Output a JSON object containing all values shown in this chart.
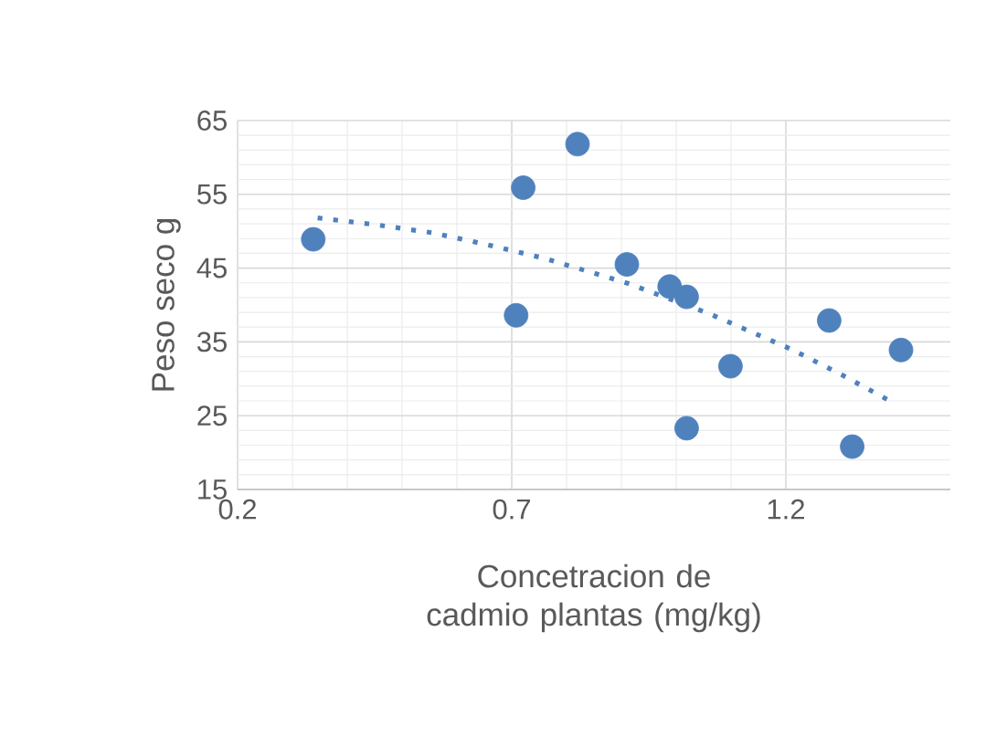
{
  "chart_data": {
    "type": "scatter",
    "xlabel": "Concetracion de cadmio plantas (mg/kg)",
    "ylabel": "Peso seco g",
    "xlim": [
      0.2,
      1.5
    ],
    "xticks": [
      0.2,
      0.7,
      1.2
    ],
    "ylim": [
      15,
      65
    ],
    "yticks": [
      15,
      25,
      35,
      45,
      55,
      65
    ],
    "grid": true,
    "marker": "circle",
    "series": [
      {
        "color": "#4f81bd",
        "x": [
          0.338,
          0.721,
          0.82,
          0.708,
          0.91,
          0.988,
          1.019,
          1.099,
          1.019,
          1.279,
          1.321,
          1.41
        ],
        "values": [
          48.9,
          55.9,
          61.8,
          38.6,
          45.5,
          42.5,
          41.1,
          31.7,
          23.3,
          37.9,
          20.8,
          33.9
        ]
      },
      {
        "type": "line",
        "line_style": "dotted",
        "marker": "none",
        "color": "#4f81bd",
        "x": [
          0.346,
          0.45,
          0.554,
          0.654,
          0.761,
          0.913,
          1.061,
          1.16,
          1.21,
          1.303,
          1.397
        ],
        "values": [
          51.8,
          50.9,
          49.8,
          48.2,
          46.3,
          42.9,
          38.8,
          35.6,
          34.0,
          30.5,
          26.7
        ]
      }
    ]
  }
}
